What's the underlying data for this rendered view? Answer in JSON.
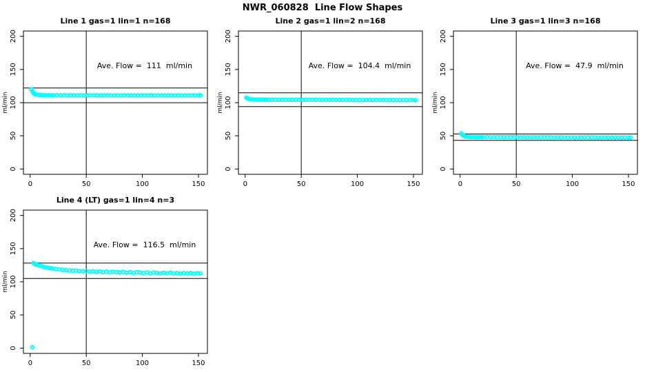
{
  "figure": {
    "title": "NWR_060828  Line Flow Shapes",
    "background_color": "#ffffff",
    "point_color": "#00ffff",
    "line_color": "#000000"
  },
  "chart_data": [
    {
      "type": "scatter",
      "title": "Line 1 gas=1 lin=1 n=168",
      "annotation": "Ave. Flow =  111  ml/min",
      "avg_flow": 111,
      "n": 168,
      "xlabel": "",
      "ylabel": "ml/min",
      "xlim": [
        -6,
        158
      ],
      "ylim": [
        -8,
        208
      ],
      "xticks": [
        0,
        50,
        100,
        150
      ],
      "yticks": [
        0,
        50,
        100,
        150,
        200
      ],
      "vline": 50,
      "hlines": [
        122.1,
        99.9
      ],
      "marker_color": "#00ffff",
      "grid": false,
      "x": [
        1,
        2,
        3,
        4,
        5,
        7,
        9,
        11,
        13,
        15,
        17,
        19,
        21,
        24,
        27,
        30,
        33,
        36,
        39,
        42,
        45,
        48,
        51,
        54,
        57,
        60,
        63,
        66,
        69,
        72,
        75,
        78,
        81,
        84,
        87,
        90,
        93,
        96,
        99,
        102,
        105,
        108,
        111,
        114,
        117,
        120,
        123,
        126,
        129,
        132,
        135,
        138,
        141,
        144,
        147,
        150,
        152
      ],
      "y": [
        120,
        117,
        114.5,
        113,
        112.3,
        111.8,
        111.4,
        111.2,
        111,
        110.9,
        111.1,
        110.8,
        111,
        111.2,
        110.9,
        111,
        110.8,
        111.1,
        110.9,
        111,
        111.1,
        110.8,
        111,
        110.9,
        111.1,
        111,
        110.8,
        111,
        111.1,
        110.9,
        111,
        110.8,
        110.9,
        111.1,
        111,
        110.9,
        110.8,
        111,
        110.9,
        111,
        110.8,
        110.9,
        111,
        110.8,
        110.9,
        111,
        110.9,
        110.8,
        111,
        110.9,
        110.8,
        110.9,
        111,
        110.8,
        110.9,
        110.8,
        110.9
      ]
    },
    {
      "type": "scatter",
      "title": "Line 2 gas=1 lin=2 n=168",
      "annotation": "Ave. Flow =  104.4  ml/min",
      "avg_flow": 104.4,
      "n": 168,
      "xlabel": "",
      "ylabel": "ml/min",
      "xlim": [
        -6,
        158
      ],
      "ylim": [
        -8,
        208
      ],
      "xticks": [
        0,
        50,
        100,
        150
      ],
      "yticks": [
        0,
        50,
        100,
        150,
        200
      ],
      "vline": 50,
      "hlines": [
        114.8,
        94.0
      ],
      "marker_color": "#00ffff",
      "grid": false,
      "x": [
        1,
        2,
        3,
        4,
        5,
        7,
        9,
        11,
        13,
        15,
        17,
        19,
        21,
        24,
        27,
        30,
        33,
        36,
        39,
        42,
        45,
        48,
        51,
        54,
        57,
        60,
        63,
        66,
        69,
        72,
        75,
        78,
        81,
        84,
        87,
        90,
        93,
        96,
        99,
        102,
        105,
        108,
        111,
        114,
        117,
        120,
        123,
        126,
        129,
        132,
        135,
        138,
        141,
        144,
        147,
        150,
        152
      ],
      "y": [
        107.5,
        106.5,
        105.8,
        105.3,
        105,
        104.8,
        104.6,
        104.5,
        104.5,
        104.4,
        104.5,
        104.4,
        104.3,
        104.5,
        104.4,
        104.3,
        104.4,
        104.5,
        104.3,
        104.4,
        104.3,
        104.4,
        104.2,
        104.3,
        104.4,
        104.2,
        104.3,
        104.2,
        104.3,
        104.1,
        104.2,
        104.3,
        104.1,
        104.2,
        104,
        104.1,
        104.2,
        104,
        104.1,
        104,
        103.9,
        104,
        104.1,
        103.9,
        104,
        103.8,
        103.9,
        104,
        103.8,
        103.9,
        103.8,
        103.7,
        103.8,
        103.7,
        103.8,
        103.7,
        103.6
      ]
    },
    {
      "type": "scatter",
      "title": "Line 3 gas=1 lin=3 n=168",
      "annotation": "Ave. Flow =  47.9  ml/min",
      "avg_flow": 47.9,
      "n": 168,
      "xlabel": "",
      "ylabel": "ml/min",
      "xlim": [
        -6,
        158
      ],
      "ylim": [
        -8,
        208
      ],
      "xticks": [
        0,
        50,
        100,
        150
      ],
      "yticks": [
        0,
        50,
        100,
        150,
        200
      ],
      "vline": 50,
      "hlines": [
        52.7,
        43.1
      ],
      "marker_color": "#00ffff",
      "grid": false,
      "x": [
        1,
        2,
        3,
        4,
        5,
        7,
        9,
        11,
        13,
        15,
        17,
        19,
        21,
        24,
        27,
        30,
        33,
        36,
        39,
        42,
        45,
        48,
        51,
        54,
        57,
        60,
        63,
        66,
        69,
        72,
        75,
        78,
        81,
        84,
        87,
        90,
        93,
        96,
        99,
        102,
        105,
        108,
        111,
        114,
        117,
        120,
        123,
        126,
        129,
        132,
        135,
        138,
        141,
        144,
        147,
        150,
        152
      ],
      "y": [
        53.5,
        51.5,
        50.2,
        49.4,
        48.9,
        48.5,
        48.3,
        48.2,
        48.1,
        48,
        48.1,
        47.9,
        48,
        48.1,
        47.9,
        48,
        47.9,
        48,
        47.8,
        47.9,
        48,
        47.8,
        47.9,
        47.8,
        47.9,
        47.7,
        47.8,
        47.9,
        47.7,
        47.8,
        47.7,
        47.8,
        47.6,
        47.7,
        47.8,
        47.6,
        47.7,
        47.6,
        47.7,
        47.5,
        47.6,
        47.7,
        47.5,
        47.6,
        47.5,
        47.6,
        47.4,
        47.5,
        47.6,
        47.4,
        47.5,
        47.4,
        47.5,
        47.3,
        47.4,
        47.3,
        47.4
      ]
    },
    {
      "type": "scatter",
      "title": "Line 4 (LT) gas=1 lin=4 n=3",
      "annotation": "Ave. Flow =  116.5  ml/min",
      "avg_flow": 116.5,
      "n": 3,
      "xlabel": "",
      "ylabel": "ml/min",
      "xlim": [
        -6,
        158
      ],
      "ylim": [
        -8,
        208
      ],
      "xticks": [
        0,
        50,
        100,
        150
      ],
      "yticks": [
        0,
        50,
        100,
        150,
        200
      ],
      "vline": 50,
      "hlines": [
        128.2,
        104.9
      ],
      "marker_color": "#00ffff",
      "grid": false,
      "x": [
        2,
        3,
        4,
        5,
        6,
        8,
        10,
        12,
        14,
        16,
        18,
        20,
        23,
        26,
        29,
        32,
        35,
        38,
        41,
        44,
        47,
        50,
        53,
        56,
        59,
        62,
        65,
        68,
        71,
        74,
        77,
        80,
        83,
        86,
        89,
        92,
        95,
        98,
        101,
        104,
        107,
        110,
        113,
        116,
        119,
        122,
        125,
        128,
        131,
        134,
        137,
        140,
        143,
        146,
        149,
        152
      ],
      "y": [
        1,
        128,
        127,
        126,
        125.5,
        124.5,
        123.5,
        122.5,
        121.5,
        121,
        120.5,
        120,
        119,
        118.5,
        118,
        117.5,
        117,
        116.5,
        116.8,
        116,
        115.5,
        116,
        115.2,
        115.8,
        114.8,
        115.5,
        114.5,
        115.2,
        114.2,
        115,
        114.5,
        113.8,
        114.8,
        113.5,
        114.5,
        113.2,
        114.2,
        113.8,
        113,
        114,
        112.8,
        113.8,
        113.2,
        112.5,
        113.5,
        112.8,
        113.8,
        112.5,
        113.2,
        112.2,
        113,
        112.5,
        113.2,
        112,
        112.8,
        112.5
      ]
    }
  ]
}
